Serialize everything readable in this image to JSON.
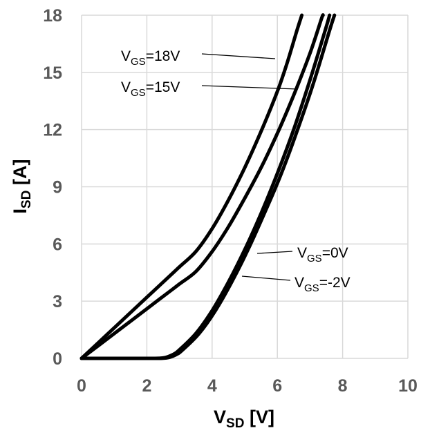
{
  "chart_data": {
    "type": "line",
    "xlabel": {
      "main": "V",
      "sub": "SD",
      "unit": " [V]"
    },
    "ylabel": {
      "main": "I",
      "sub": "SD",
      "unit": " [A]"
    },
    "xlim": [
      0,
      10
    ],
    "ylim": [
      0,
      18
    ],
    "xticks": [
      0,
      2,
      4,
      6,
      8,
      10
    ],
    "yticks": [
      0,
      3,
      6,
      9,
      12,
      15,
      18
    ],
    "grid": true,
    "series": [
      {
        "name": "V_GS=18V",
        "label": {
          "main": "V",
          "sub": "GS",
          "rest": "=18V"
        },
        "points": [
          [
            0,
            0
          ],
          [
            0.5,
            0.8
          ],
          [
            1,
            1.6
          ],
          [
            1.5,
            2.4
          ],
          [
            2,
            3.2
          ],
          [
            2.5,
            4.0
          ],
          [
            3,
            4.8
          ],
          [
            3.5,
            5.6
          ],
          [
            4,
            6.8
          ],
          [
            4.5,
            8.3
          ],
          [
            5,
            10.0
          ],
          [
            5.5,
            11.9
          ],
          [
            6,
            14.0
          ],
          [
            6.3,
            15.5
          ],
          [
            6.6,
            17.2
          ],
          [
            6.75,
            18
          ]
        ]
      },
      {
        "name": "V_GS=15V",
        "label": {
          "main": "V",
          "sub": "GS",
          "rest": "=15V"
        },
        "points": [
          [
            0,
            0
          ],
          [
            0.5,
            0.65
          ],
          [
            1,
            1.3
          ],
          [
            1.5,
            1.95
          ],
          [
            2,
            2.6
          ],
          [
            2.5,
            3.25
          ],
          [
            3,
            3.9
          ],
          [
            3.5,
            4.55
          ],
          [
            4,
            5.6
          ],
          [
            4.5,
            6.9
          ],
          [
            5,
            8.4
          ],
          [
            5.5,
            10.0
          ],
          [
            6,
            11.8
          ],
          [
            6.5,
            13.8
          ],
          [
            7,
            16.0
          ],
          [
            7.35,
            17.8
          ],
          [
            7.4,
            18
          ]
        ]
      },
      {
        "name": "V_GS=0V",
        "label": {
          "main": "V",
          "sub": "GS",
          "rest": "=0V"
        },
        "points": [
          [
            0,
            0
          ],
          [
            1,
            0
          ],
          [
            2,
            0
          ],
          [
            2.5,
            0.02
          ],
          [
            2.8,
            0.2
          ],
          [
            3,
            0.45
          ],
          [
            3.5,
            1.3
          ],
          [
            4,
            2.5
          ],
          [
            4.5,
            4.0
          ],
          [
            5,
            5.7
          ],
          [
            5.5,
            7.6
          ],
          [
            6,
            9.7
          ],
          [
            6.5,
            12.0
          ],
          [
            7,
            14.6
          ],
          [
            7.5,
            17.4
          ],
          [
            7.6,
            18
          ]
        ]
      },
      {
        "name": "V_GS=-2V",
        "label": {
          "main": "V",
          "sub": "GS",
          "rest": "=-2V"
        },
        "points": [
          [
            0,
            0
          ],
          [
            1,
            0
          ],
          [
            2,
            0
          ],
          [
            2.6,
            0.02
          ],
          [
            2.9,
            0.2
          ],
          [
            3.1,
            0.45
          ],
          [
            3.6,
            1.3
          ],
          [
            4.1,
            2.5
          ],
          [
            4.6,
            4.0
          ],
          [
            5.1,
            5.7
          ],
          [
            5.6,
            7.6
          ],
          [
            6.1,
            9.6
          ],
          [
            6.6,
            11.9
          ],
          [
            7.1,
            14.4
          ],
          [
            7.6,
            17.2
          ],
          [
            7.75,
            18
          ]
        ]
      }
    ]
  }
}
